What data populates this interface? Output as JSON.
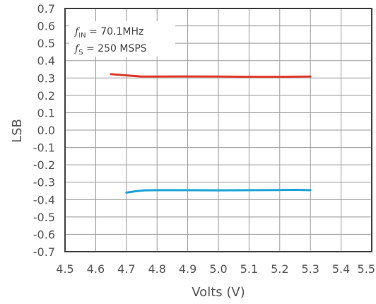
{
  "chart_data": {
    "type": "line",
    "xlabel": "Volts (V)",
    "ylabel": "LSB",
    "xlim": [
      4.5,
      5.5
    ],
    "ylim": [
      -0.7,
      0.7
    ],
    "x_ticks": [
      "4.5",
      "4.6",
      "4.7",
      "4.8",
      "4.9",
      "5.0",
      "5.1",
      "5.2",
      "5.3",
      "5.4",
      "5.5"
    ],
    "y_ticks": [
      "0.7",
      "0.6",
      "0.5",
      "0.4",
      "0.3",
      "0.2",
      "0.1",
      "0.0",
      "-0.1",
      "-0.2",
      "-0.3",
      "-0.4",
      "-0.5",
      "-0.6",
      "-0.7"
    ],
    "grid": true,
    "annotation": {
      "line1": {
        "f": "f",
        "sub": "IN",
        "text": " = 70.1MHz"
      },
      "line2": {
        "f": "f",
        "sub": "S",
        "text": " = 250 MSPS"
      }
    },
    "series": [
      {
        "color": "#e03a2a",
        "points": [
          [
            4.65,
            0.322
          ],
          [
            4.7,
            0.315
          ],
          [
            4.75,
            0.308
          ],
          [
            4.8,
            0.308
          ],
          [
            4.9,
            0.309
          ],
          [
            5.0,
            0.308
          ],
          [
            5.1,
            0.307
          ],
          [
            5.2,
            0.307
          ],
          [
            5.3,
            0.308
          ]
        ]
      },
      {
        "color": "#1aa3d6",
        "points": [
          [
            4.7,
            -0.36
          ],
          [
            4.73,
            -0.352
          ],
          [
            4.76,
            -0.347
          ],
          [
            4.8,
            -0.346
          ],
          [
            4.9,
            -0.346
          ],
          [
            5.0,
            -0.347
          ],
          [
            5.1,
            -0.346
          ],
          [
            5.2,
            -0.345
          ],
          [
            5.25,
            -0.344
          ],
          [
            5.3,
            -0.346
          ]
        ]
      }
    ]
  }
}
